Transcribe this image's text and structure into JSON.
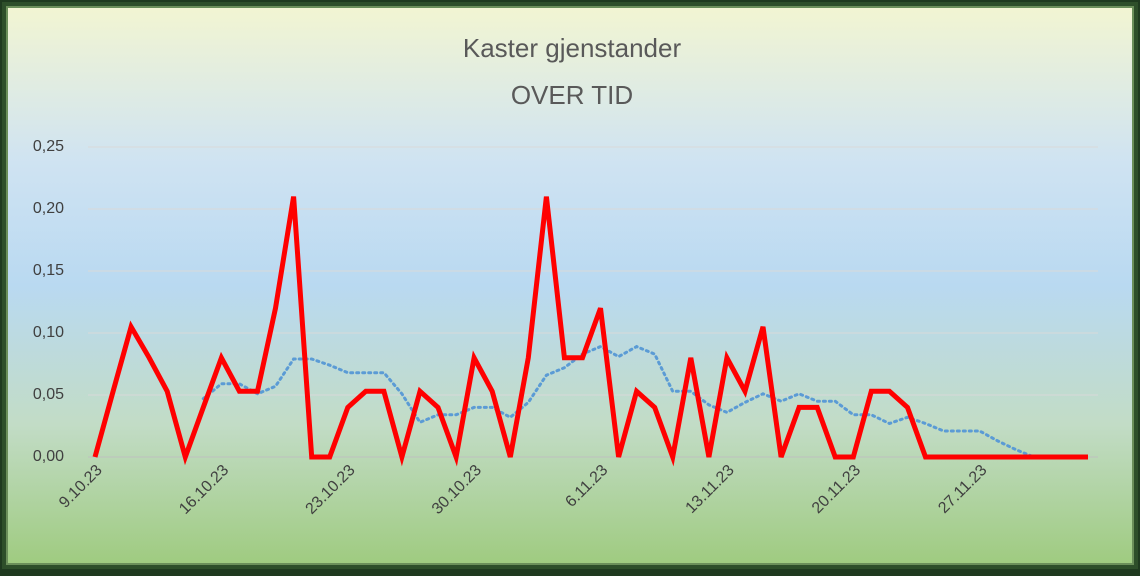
{
  "chart_data": {
    "type": "line",
    "title": "Kaster gjenstander",
    "subtitle": "OVER TID",
    "categories": [
      "9.10.23",
      null,
      null,
      null,
      null,
      null,
      null,
      "16.10.23",
      null,
      null,
      null,
      null,
      null,
      null,
      "23.10.23",
      null,
      null,
      null,
      null,
      null,
      null,
      "30.10.23",
      null,
      null,
      null,
      null,
      null,
      null,
      "6.11.23",
      null,
      null,
      null,
      null,
      null,
      null,
      "13.11.23",
      null,
      null,
      null,
      null,
      null,
      null,
      "20.11.23",
      null,
      null,
      null,
      null,
      null,
      null,
      "27.11.23",
      null,
      null,
      null,
      null,
      null,
      null
    ],
    "series": [
      {
        "color": "#ff0000",
        "style": "solid",
        "values": [
          0,
          0.053,
          0.105,
          0.08,
          0.053,
          0,
          0.04,
          0.08,
          0.053,
          0.053,
          0.12,
          0.21,
          0,
          0,
          0.04,
          0.053,
          0.053,
          0,
          0.053,
          0.04,
          0,
          0.08,
          0.053,
          0,
          0.08,
          0.21,
          0.08,
          0.08,
          0.12,
          0,
          0.053,
          0.04,
          0,
          0.08,
          0,
          0.08,
          0.053,
          0.105,
          0,
          0.04,
          0.04,
          0,
          0,
          0.053,
          0.053,
          0.04,
          0,
          0,
          0,
          0,
          0,
          0,
          0,
          0,
          0,
          0
        ]
      },
      {
        "color": "#5b9bd5",
        "style": "dotted",
        "values": [
          null,
          null,
          null,
          null,
          null,
          null,
          0.047,
          0.059,
          0.059,
          0.051,
          0.057,
          0.079,
          0.079,
          0.074,
          0.068,
          0.068,
          0.068,
          0.051,
          0.028,
          0.034,
          0.034,
          0.04,
          0.04,
          0.032,
          0.044,
          0.066,
          0.072,
          0.083,
          0.089,
          0.081,
          0.089,
          0.083,
          0.053,
          0.053,
          0.042,
          0.036,
          0.044,
          0.051,
          0.045,
          0.051,
          0.045,
          0.045,
          0.034,
          0.034,
          0.027,
          0.032,
          0.027,
          0.021,
          0.021,
          0.021,
          0.013,
          0.006,
          0,
          0,
          0,
          0
        ]
      }
    ],
    "ylim": [
      0,
      0.25
    ],
    "yticks": [
      {
        "value": 0,
        "label": "0,00"
      },
      {
        "value": 0.05,
        "label": "0,05"
      },
      {
        "value": 0.1,
        "label": "0,10"
      },
      {
        "value": 0.15,
        "label": "0,15"
      },
      {
        "value": 0.2,
        "label": "0,20"
      },
      {
        "value": 0.25,
        "label": "0,25"
      }
    ],
    "grid": true
  }
}
